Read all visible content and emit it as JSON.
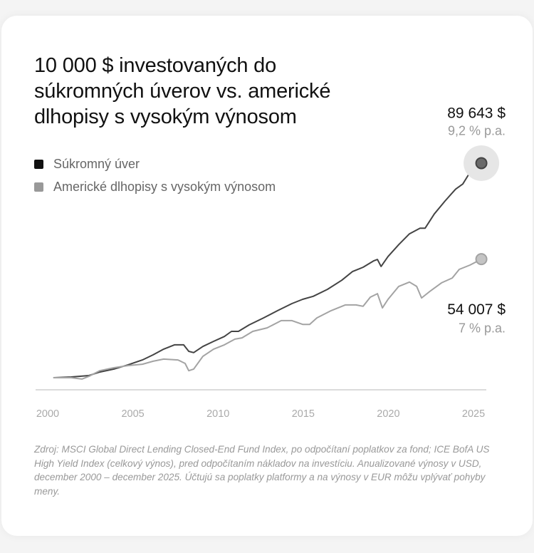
{
  "chart_data": {
    "type": "line",
    "title": "10 000 $ investovaných do\nsúkromných úverov vs. americké\ndlhopisy s vysokým výnosom",
    "xlim": [
      1999.29,
      2025.75
    ],
    "ylim": [
      0,
      97300
    ],
    "xticks": [
      2000,
      2005,
      2010,
      2015,
      2020,
      2025
    ],
    "grid": false,
    "source": "Zdroj: MSCI Global Direct Lending Closed-End Fund Index, po odpočítaní poplatkov za fond; ICE BofA US High Yield Index (celkový výnos), pred odpočítaním nákladov na investíciu. Anualizované výnosy v USD, december 2000 – december 2025. Účtujú sa poplatky platformy a na výnosy v EUR môžu vplývať pohyby meny.",
    "series": [
      {
        "name": "Súkromný úver",
        "color": "#444444",
        "marker_color": "#6a6a6a",
        "end_label": "89 643 $",
        "rate": "9,2 % p.a.",
        "x": [
          2000.33,
          2001.38,
          2002.42,
          2003.05,
          2003.89,
          2004.72,
          2005.56,
          2006.19,
          2006.81,
          2007.44,
          2007.98,
          2008.28,
          2008.57,
          2009.11,
          2009.74,
          2010.37,
          2010.79,
          2011.2,
          2011.83,
          2012.67,
          2013.5,
          2014.34,
          2014.97,
          2015.59,
          2016.43,
          2017.27,
          2017.89,
          2018.52,
          2019.15,
          2019.36,
          2019.57,
          2019.98,
          2020.61,
          2021.24,
          2021.86,
          2022.16,
          2022.7,
          2023.33,
          2023.95,
          2024.37,
          2024.79,
          2025.46
        ],
        "values": [
          10000,
          10260,
          10800,
          12100,
          13200,
          14800,
          16600,
          18500,
          20600,
          22200,
          22200,
          19800,
          19300,
          21600,
          23500,
          25300,
          27200,
          27200,
          29600,
          32200,
          34900,
          37500,
          39100,
          40200,
          42800,
          46200,
          49400,
          51000,
          53400,
          53900,
          51300,
          55000,
          59400,
          63400,
          65500,
          65500,
          70800,
          75600,
          80000,
          81900,
          86200,
          89643
        ]
      },
      {
        "name": "Americké dlhopisy s vysokým výnosom",
        "color": "#a3a3a3",
        "marker_color": "#c4c4c4",
        "end_label": "54 007 $",
        "rate": "7 % p.a.",
        "x": [
          2000.33,
          2001.38,
          2002.01,
          2002.42,
          2003.05,
          2003.89,
          2004.72,
          2005.56,
          2006.19,
          2006.81,
          2007.65,
          2008.07,
          2008.28,
          2008.57,
          2009.11,
          2009.74,
          2010.37,
          2010.99,
          2011.41,
          2012.04,
          2012.88,
          2013.71,
          2014.34,
          2014.97,
          2015.38,
          2015.8,
          2016.64,
          2017.47,
          2018.1,
          2018.52,
          2018.94,
          2019.36,
          2019.65,
          2019.98,
          2020.61,
          2021.24,
          2021.66,
          2021.95,
          2022.49,
          2023.12,
          2023.75,
          2024.16,
          2024.79,
          2025.46
        ],
        "values": [
          10000,
          10000,
          9500,
          10500,
          12600,
          13700,
          14500,
          15000,
          16100,
          16900,
          16600,
          15300,
          12600,
          13200,
          17900,
          20600,
          22200,
          24300,
          24800,
          27200,
          28500,
          31200,
          31200,
          29800,
          29800,
          32200,
          34900,
          37000,
          37000,
          36500,
          39900,
          41200,
          35900,
          39100,
          43900,
          45500,
          43900,
          39600,
          42300,
          45200,
          47000,
          50200,
          51800,
          54007
        ]
      }
    ]
  }
}
